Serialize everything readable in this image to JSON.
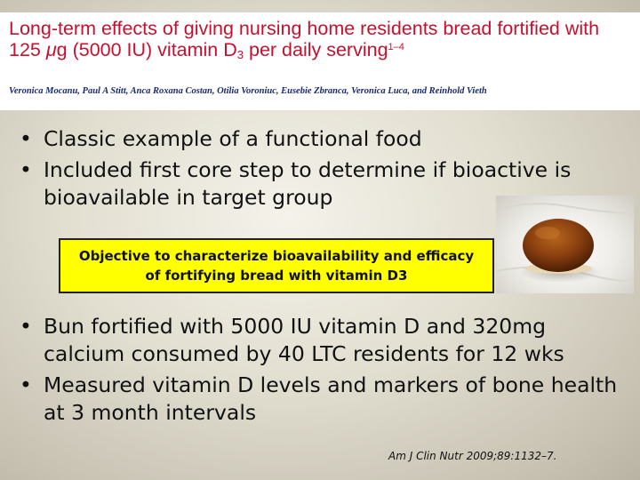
{
  "header": {
    "title_line1": "Long-term effects of giving nursing home residents bread fortified with",
    "title_line2_a": "125",
    "title_mu": "μ",
    "title_line2_b": "g (5000 IU) vitamin D",
    "title_sub": "3",
    "title_line2_c": " per daily serving",
    "title_sup": "1–4",
    "authors": "Veronica Mocanu, Paul A Stitt, Anca Roxana Costan, Otilia Voroniuc, Eusebie Zbranca, Veronica Luca, and Reinhold Vieth"
  },
  "bullets_top": [
    "Classic example of a functional food",
    "Included first core step to determine if bioactive is bioavailable in target group"
  ],
  "objective": {
    "line1": "Objective to characterize bioavailability and efficacy",
    "line2": "of fortifying bread with vitamin D3"
  },
  "bullets_bottom": [
    "Bun fortified with 5000 IU vitamin D and 320mg calcium consumed by 40 LTC residents for 12 wks",
    "Measured vitamin D levels and markers of bone health at 3 month intervals"
  ],
  "bullet_char": "•",
  "citation": "Am J Clin Nutr 2009;89:1132–7.",
  "colors": {
    "title": "#c8102e",
    "authors": "#1a2a6c",
    "objective_bg": "#ffff00"
  }
}
